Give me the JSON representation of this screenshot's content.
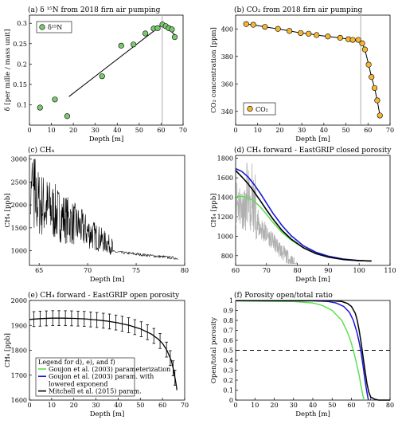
{
  "chart_data": [
    {
      "type": "scatter",
      "title": "(a) δ ¹⁵N from 2018 firn air pumping",
      "xlabel": "Depth [m]",
      "ylabel": "δ [per mille / mass unit]",
      "xlim": [
        0,
        70
      ],
      "ylim": [
        0.05,
        0.32
      ],
      "xticks": [
        0,
        10,
        20,
        30,
        40,
        50,
        60,
        70
      ],
      "yticks": [
        0.1,
        0.15,
        0.2,
        0.25,
        0.3
      ],
      "legend": [
        "δ¹⁵N"
      ],
      "legend_position": "top-left",
      "marker_color": "#7bc96f",
      "points": [
        {
          "x": 4.8,
          "y": 0.093
        },
        {
          "x": 11.6,
          "y": 0.113
        },
        {
          "x": 17.2,
          "y": 0.072
        },
        {
          "x": 33.1,
          "y": 0.17
        },
        {
          "x": 41.8,
          "y": 0.245
        },
        {
          "x": 47.4,
          "y": 0.248
        },
        {
          "x": 52.8,
          "y": 0.275
        },
        {
          "x": 56.6,
          "y": 0.287
        },
        {
          "x": 58.4,
          "y": 0.288
        },
        {
          "x": 60.6,
          "y": 0.297
        },
        {
          "x": 62.1,
          "y": 0.293
        },
        {
          "x": 63.5,
          "y": 0.288
        },
        {
          "x": 64.9,
          "y": 0.285
        },
        {
          "x": 66.2,
          "y": 0.266
        }
      ],
      "fit_line": [
        [
          18,
          0.12
        ],
        [
          60.8,
          0.298
        ],
        [
          66.2,
          0.272
        ]
      ],
      "vline_x": 60.5
    },
    {
      "type": "line",
      "title": "(b) CO₂ from 2018 firn air pumping",
      "xlabel": "Depth [m]",
      "ylabel": "CO₂ concentration [ppm]",
      "xlim": [
        0,
        70
      ],
      "ylim": [
        330,
        410
      ],
      "xticks": [
        0,
        10,
        20,
        30,
        40,
        50,
        60,
        70
      ],
      "yticks": [
        340,
        360,
        380,
        400
      ],
      "legend": [
        "CO₂"
      ],
      "legend_position": "bottom-left",
      "marker_color": "#f5b731",
      "points": [
        {
          "x": 4.8,
          "y": 403.5
        },
        {
          "x": 8.0,
          "y": 403.0
        },
        {
          "x": 13.3,
          "y": 401.5
        },
        {
          "x": 19.2,
          "y": 400.0
        },
        {
          "x": 24.4,
          "y": 398.5
        },
        {
          "x": 29.5,
          "y": 397.0
        },
        {
          "x": 33.1,
          "y": 396.5
        },
        {
          "x": 36.7,
          "y": 395.5
        },
        {
          "x": 41.8,
          "y": 394.5
        },
        {
          "x": 47.4,
          "y": 393.5
        },
        {
          "x": 51.1,
          "y": 392.5
        },
        {
          "x": 53.1,
          "y": 392.0
        },
        {
          "x": 55.6,
          "y": 392.0
        },
        {
          "x": 57.4,
          "y": 389.5
        },
        {
          "x": 58.6,
          "y": 385.0
        },
        {
          "x": 60.3,
          "y": 374.0
        },
        {
          "x": 61.6,
          "y": 365.0
        },
        {
          "x": 63.0,
          "y": 357.0
        },
        {
          "x": 64.2,
          "y": 348.0
        },
        {
          "x": 65.4,
          "y": 337.0
        }
      ],
      "vline_x": 56.7
    },
    {
      "type": "line",
      "title": "(c) CH₄",
      "xlabel": "Depth [m]",
      "ylabel": "CH₄ [ppb]",
      "xlim": [
        64,
        80
      ],
      "ylim": [
        680,
        3080
      ],
      "xticks": [
        65,
        70,
        75,
        80
      ],
      "yticks": [
        1000,
        1500,
        2000,
        2500,
        3000
      ],
      "line_color": "#000000"
    },
    {
      "type": "line",
      "title": "(d) CH₄ forward - EastGRIP closed porosity",
      "xlabel": "Depth [m]",
      "ylabel": "CH₄ [ppb]",
      "xlim": [
        60,
        110
      ],
      "ylim": [
        700,
        1830
      ],
      "xticks": [
        60,
        70,
        80,
        90,
        100,
        110
      ],
      "yticks": [
        800,
        1000,
        1200,
        1400,
        1600,
        1800
      ],
      "series": [
        {
          "color": "#5ee04f",
          "points": [
            [
              60,
              1410
            ],
            [
              62,
              1410
            ],
            [
              64,
              1395
            ],
            [
              66,
              1360
            ],
            [
              68,
              1300
            ],
            [
              70,
              1225
            ],
            [
              72,
              1145
            ],
            [
              75,
              1040
            ],
            [
              78,
              960
            ],
            [
              82,
              880
            ],
            [
              86,
              825
            ],
            [
              90,
              790
            ],
            [
              95,
              762
            ],
            [
              100,
              748
            ],
            [
              104,
              745
            ]
          ]
        },
        {
          "color": "#1717d9",
          "points": [
            [
              60,
              1695
            ],
            [
              62,
              1665
            ],
            [
              64,
              1610
            ],
            [
              66,
              1530
            ],
            [
              68,
              1440
            ],
            [
              70,
              1340
            ],
            [
              72,
              1240
            ],
            [
              75,
              1110
            ],
            [
              78,
              1005
            ],
            [
              82,
              900
            ],
            [
              86,
              835
            ],
            [
              90,
              795
            ],
            [
              95,
              765
            ],
            [
              100,
              750
            ],
            [
              104,
              745
            ]
          ]
        },
        {
          "color": "#000000",
          "points": [
            [
              60,
              1675
            ],
            [
              62,
              1610
            ],
            [
              64,
              1540
            ],
            [
              66,
              1455
            ],
            [
              68,
              1365
            ],
            [
              70,
              1270
            ],
            [
              72,
              1180
            ],
            [
              75,
              1060
            ],
            [
              78,
              970
            ],
            [
              82,
              880
            ],
            [
              86,
              820
            ],
            [
              90,
              785
            ],
            [
              95,
              760
            ],
            [
              100,
              748
            ],
            [
              104,
              745
            ]
          ]
        }
      ]
    },
    {
      "type": "line",
      "title": "(e) CH₄ forward - EastGRIP open porosity",
      "xlabel": "Depth [m]",
      "ylabel": "CH₄ [ppb]",
      "xlim": [
        0,
        70
      ],
      "ylim": [
        1600,
        2000
      ],
      "xticks": [
        0,
        10,
        20,
        30,
        40,
        50,
        60,
        70
      ],
      "yticks": [
        1600,
        1700,
        1800,
        1900,
        2000
      ],
      "legend_title": "Legend for d), e), and f)",
      "legend": [
        {
          "label": "Goujon et al. (2003) parameterization",
          "color": "#5ee04f"
        },
        {
          "label": "Goujon et al. (2003) param. with",
          "color": "#1717d9"
        },
        {
          "label": "lowered exponend",
          "color": ""
        },
        {
          "label": "Mitchell et al. (2015) param.",
          "color": "#000000"
        }
      ],
      "legend_position": "bottom-left",
      "curve": [
        [
          0,
          1924
        ],
        [
          5,
          1927
        ],
        [
          10,
          1929
        ],
        [
          15,
          1929
        ],
        [
          20,
          1928
        ],
        [
          25,
          1926
        ],
        [
          30,
          1922
        ],
        [
          35,
          1917
        ],
        [
          40,
          1910
        ],
        [
          45,
          1900
        ],
        [
          50,
          1886
        ],
        [
          55,
          1865
        ],
        [
          58,
          1845
        ],
        [
          60,
          1828
        ],
        [
          62,
          1800
        ],
        [
          64,
          1758
        ],
        [
          65,
          1720
        ],
        [
          66,
          1670
        ],
        [
          66.5,
          1640
        ]
      ],
      "errorbar_x": [
        2,
        4.8,
        7.6,
        10.5,
        13.3,
        16.2,
        19,
        21.9,
        24.7,
        27.6,
        30.4,
        33.3,
        36.1,
        39,
        41.8,
        44.7,
        47.5,
        50.4,
        53.2,
        56.1,
        58.9,
        61.8,
        63.5,
        64.8,
        65.6
      ],
      "errorbar_halfwidth": 30
    },
    {
      "type": "line",
      "title": "(f) Porosity open/total ratio",
      "xlabel": "Depth [m]",
      "ylabel": "Open/total porosity",
      "xlim": [
        0,
        80
      ],
      "ylim": [
        0,
        1.0
      ],
      "xticks": [
        0,
        10,
        20,
        30,
        40,
        50,
        60,
        70,
        80
      ],
      "yticks": [
        0,
        0.1,
        0.2,
        0.3,
        0.4,
        0.5,
        0.6,
        0.7,
        0.8,
        0.9,
        1
      ],
      "hline_y": 0.5,
      "series": [
        {
          "color": "#5ee04f",
          "points": [
            [
              0,
              0.995
            ],
            [
              30,
              0.99
            ],
            [
              40,
              0.975
            ],
            [
              45,
              0.95
            ],
            [
              50,
              0.9
            ],
            [
              55,
              0.8
            ],
            [
              58,
              0.68
            ],
            [
              60,
              0.57
            ],
            [
              62,
              0.42
            ],
            [
              64,
              0.25
            ],
            [
              65,
              0.14
            ],
            [
              66,
              0.04
            ],
            [
              66.6,
              0
            ]
          ]
        },
        {
          "color": "#1717d9",
          "points": [
            [
              0,
              0.998
            ],
            [
              40,
              0.997
            ],
            [
              48,
              0.99
            ],
            [
              52,
              0.975
            ],
            [
              56,
              0.94
            ],
            [
              59,
              0.88
            ],
            [
              61,
              0.8
            ],
            [
              63,
              0.67
            ],
            [
              64,
              0.58
            ],
            [
              65,
              0.48
            ],
            [
              66,
              0.35
            ],
            [
              67,
              0.2
            ],
            [
              68,
              0.08
            ],
            [
              68.8,
              0
            ]
          ]
        },
        {
          "color": "#000000",
          "points": [
            [
              0,
              0.998
            ],
            [
              50,
              0.997
            ],
            [
              55,
              0.99
            ],
            [
              58,
              0.97
            ],
            [
              60,
              0.94
            ],
            [
              62,
              0.87
            ],
            [
              63,
              0.8
            ],
            [
              64,
              0.7
            ],
            [
              65,
              0.58
            ],
            [
              66,
              0.44
            ],
            [
              67,
              0.3
            ],
            [
              68,
              0.17
            ],
            [
              69,
              0.08
            ],
            [
              70,
              0.03
            ],
            [
              72,
              0.01
            ],
            [
              74,
              0.0
            ],
            [
              80,
              0.0
            ]
          ]
        }
      ]
    }
  ]
}
